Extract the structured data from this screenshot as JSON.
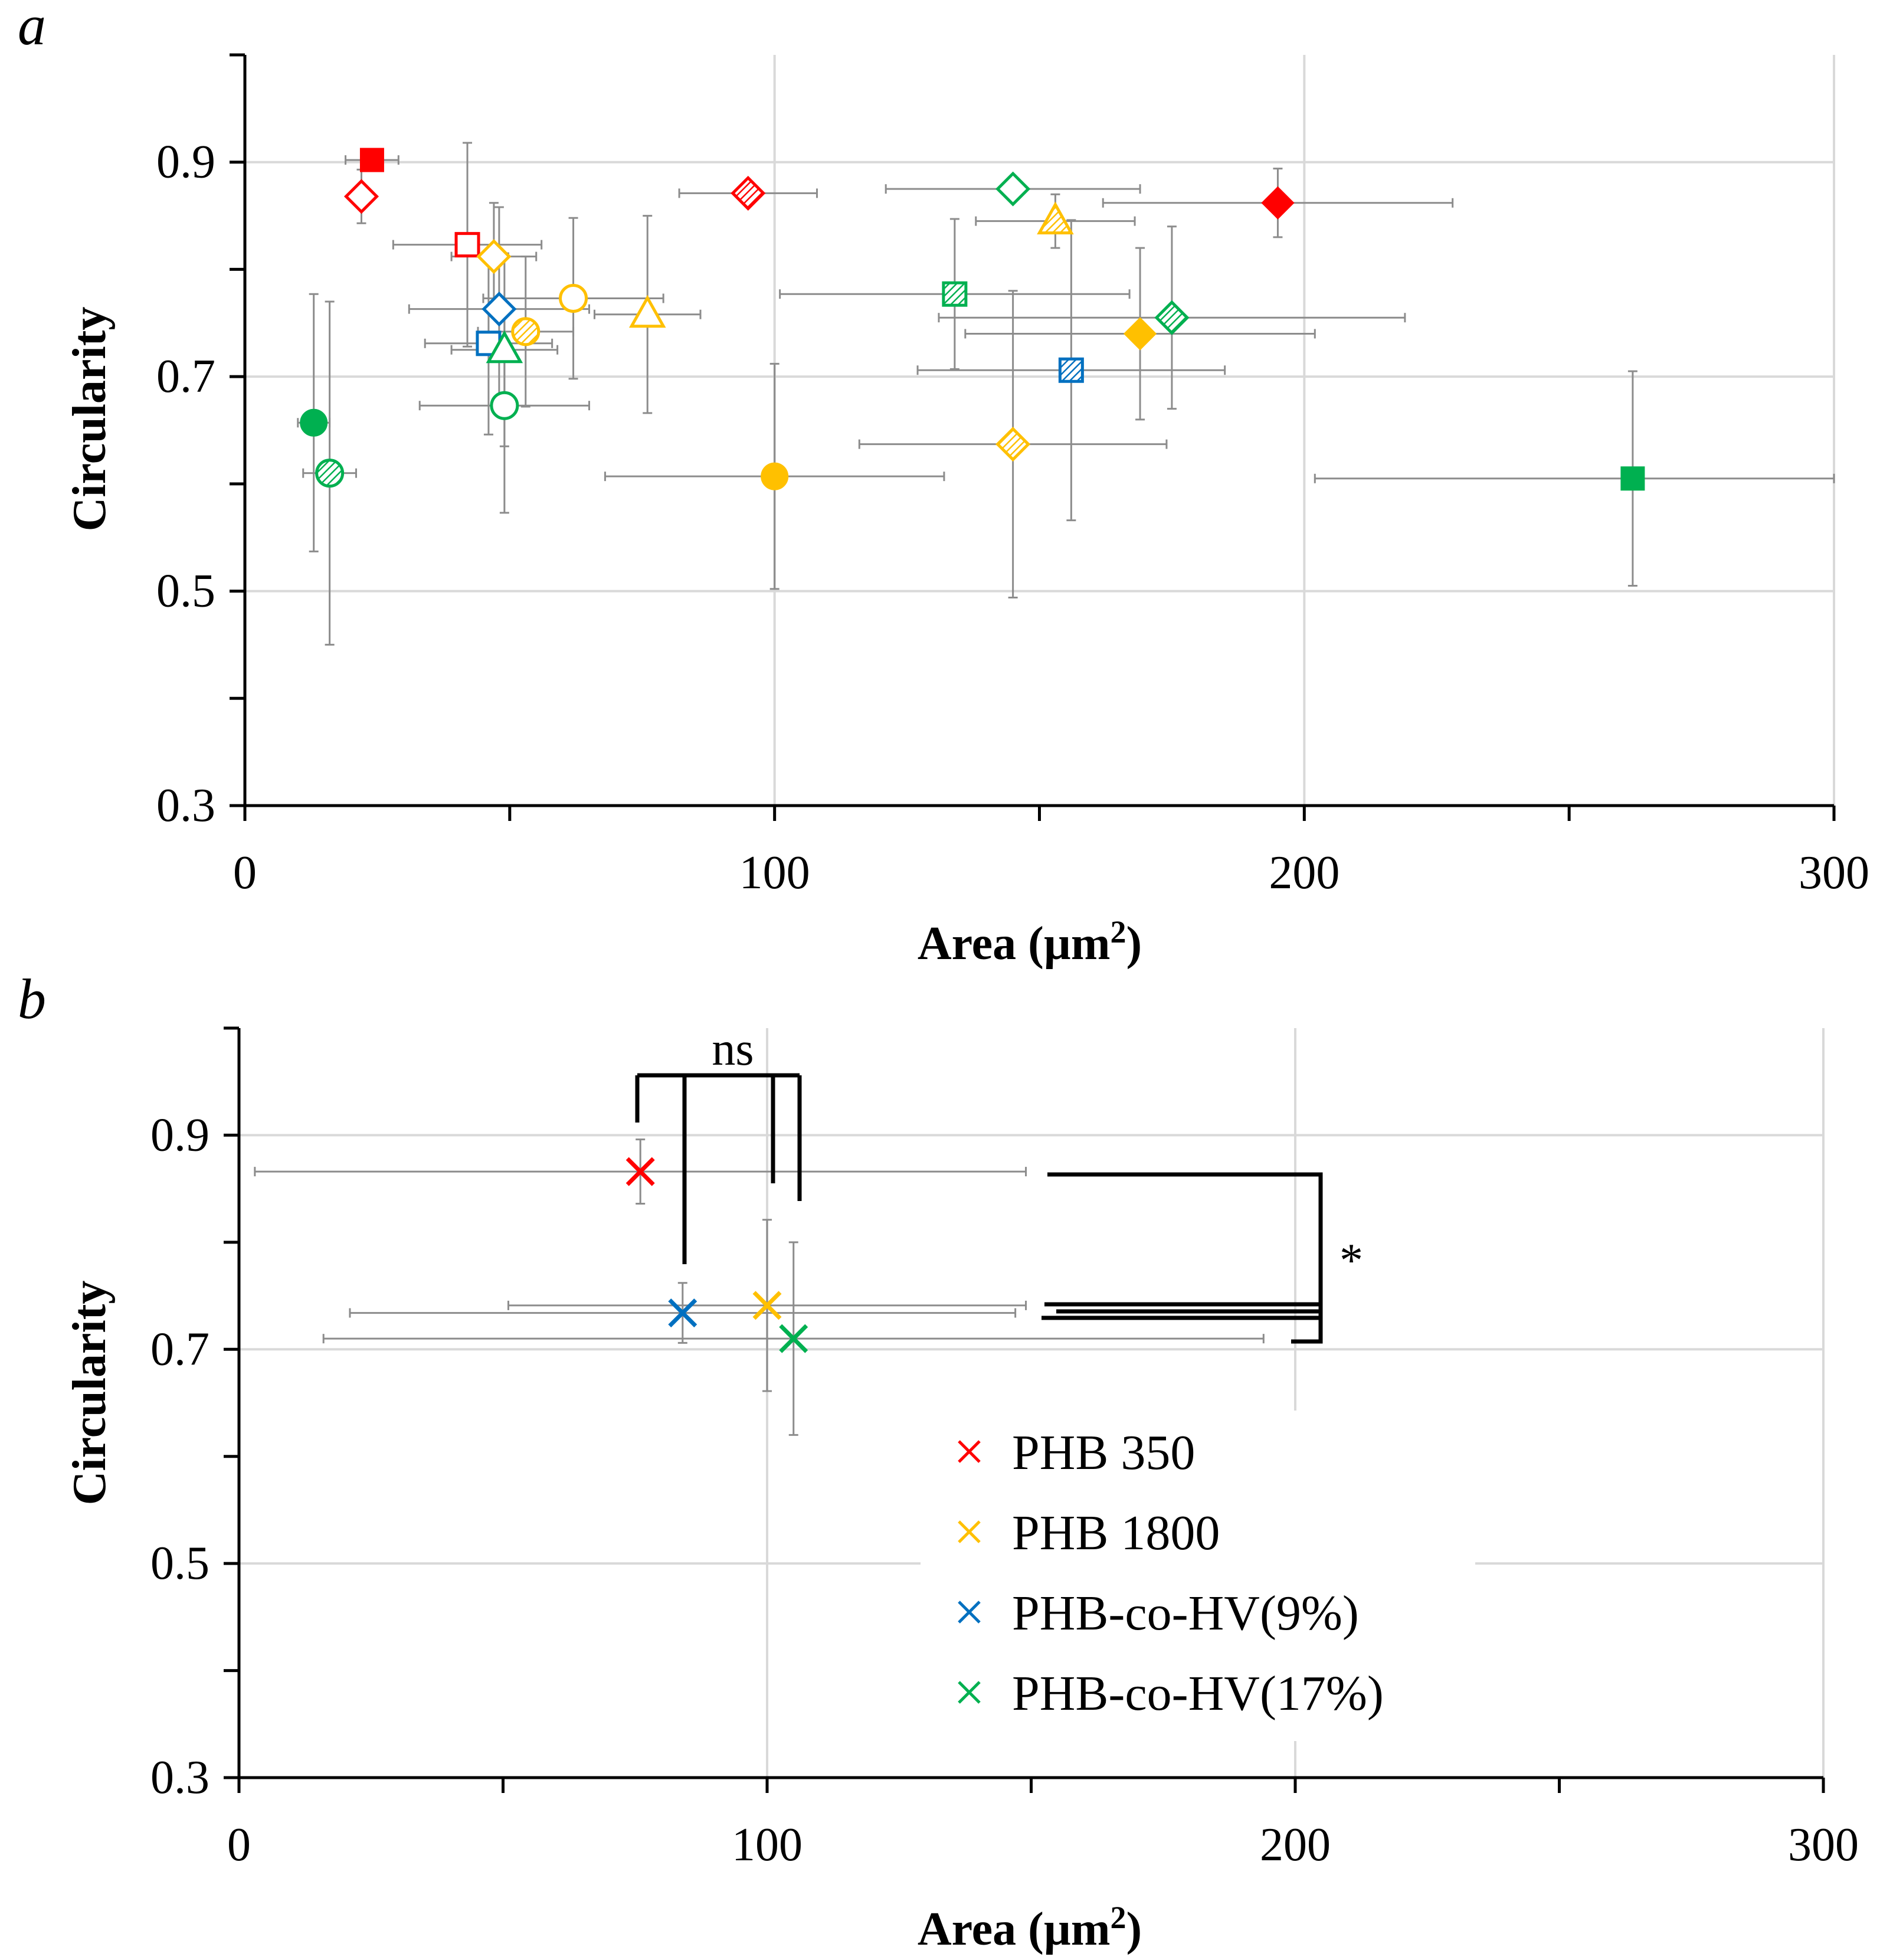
{
  "colors": {
    "red": "#ff0000",
    "yellow": "#ffc000",
    "blue": "#0070c0",
    "green": "#00b050",
    "grid": "#d9d9d9",
    "errorbar": "#8c8c8c",
    "axis": "#000000"
  },
  "chart_data": [
    {
      "panel_label": "a",
      "type": "scatter",
      "title": "",
      "xlabel_main": "Area (µm",
      "xlabel_sup": "2",
      "xlabel_close": ")",
      "ylabel": "Circularity",
      "xlim": [
        0,
        300
      ],
      "ylim": [
        0.3,
        1.0
      ],
      "x_ticks": [
        0,
        100,
        200,
        300
      ],
      "x_minor_ticks": [
        50,
        150,
        250
      ],
      "x_tick_labels": [
        "0",
        "100",
        "200",
        "300"
      ],
      "y_ticks": [
        0.3,
        0.5,
        0.7,
        0.9
      ],
      "y_minor_ticks": [
        0.4,
        0.6,
        0.8,
        1.0
      ],
      "y_tick_labels": [
        "0.3",
        "0.5",
        "0.7",
        "0.9"
      ],
      "grid": true,
      "points": [
        {
          "x": 24,
          "y": 0.902,
          "xerr": 5,
          "yerr": 0.004,
          "color": "red",
          "marker": "square",
          "fill": "solid"
        },
        {
          "x": 22,
          "y": 0.868,
          "xerr": 2,
          "yerr": 0.025,
          "color": "red",
          "marker": "diamond",
          "fill": "open"
        },
        {
          "x": 42,
          "y": 0.823,
          "xerr": 14,
          "yerr": 0.095,
          "color": "red",
          "marker": "square",
          "fill": "open"
        },
        {
          "x": 95,
          "y": 0.871,
          "xerr": 13,
          "yerr": 0.004,
          "color": "red",
          "marker": "diamond",
          "fill": "hatched"
        },
        {
          "x": 195,
          "y": 0.862,
          "xerr": 33,
          "yerr": 0.032,
          "color": "red",
          "marker": "diamond",
          "fill": "solid"
        },
        {
          "x": 47,
          "y": 0.812,
          "xerr": 8,
          "yerr": 0.05,
          "color": "yellow",
          "marker": "diamond",
          "fill": "open"
        },
        {
          "x": 62,
          "y": 0.773,
          "xerr": 17,
          "yerr": 0.075,
          "color": "yellow",
          "marker": "circle",
          "fill": "open"
        },
        {
          "x": 76,
          "y": 0.758,
          "xerr": 10,
          "yerr": 0.092,
          "color": "yellow",
          "marker": "triangle",
          "fill": "open"
        },
        {
          "x": 53,
          "y": 0.742,
          "xerr": 9,
          "yerr": 0.07,
          "color": "yellow",
          "marker": "circle",
          "fill": "hatched"
        },
        {
          "x": 100,
          "y": 0.607,
          "xerr": 32,
          "yerr": 0.105,
          "color": "yellow",
          "marker": "circle",
          "fill": "solid"
        },
        {
          "x": 145,
          "y": 0.637,
          "xerr": 29,
          "yerr": 0.143,
          "color": "yellow",
          "marker": "diamond",
          "fill": "hatched"
        },
        {
          "x": 153,
          "y": 0.845,
          "xerr": 15,
          "yerr": 0.025,
          "color": "yellow",
          "marker": "triangle",
          "fill": "hatched"
        },
        {
          "x": 169,
          "y": 0.74,
          "xerr": 33,
          "yerr": 0.08,
          "color": "yellow",
          "marker": "diamond",
          "fill": "solid"
        },
        {
          "x": 48,
          "y": 0.763,
          "xerr": 17,
          "yerr": 0.095,
          "color": "blue",
          "marker": "diamond",
          "fill": "open"
        },
        {
          "x": 46,
          "y": 0.731,
          "xerr": 12,
          "yerr": 0.085,
          "color": "blue",
          "marker": "square",
          "fill": "open"
        },
        {
          "x": 156,
          "y": 0.706,
          "xerr": 29,
          "yerr": 0.14,
          "color": "blue",
          "marker": "square",
          "fill": "hatched"
        },
        {
          "x": 49,
          "y": 0.725,
          "xerr": 10,
          "yerr": 0.09,
          "color": "green",
          "marker": "triangle",
          "fill": "open"
        },
        {
          "x": 49,
          "y": 0.673,
          "xerr": 16,
          "yerr": 0.1,
          "color": "green",
          "marker": "circle",
          "fill": "open"
        },
        {
          "x": 13,
          "y": 0.657,
          "xerr": 3,
          "yerr": 0.12,
          "color": "green",
          "marker": "circle",
          "fill": "solid"
        },
        {
          "x": 16,
          "y": 0.61,
          "xerr": 5,
          "yerr": 0.16,
          "color": "green",
          "marker": "circle",
          "fill": "hatched"
        },
        {
          "x": 145,
          "y": 0.875,
          "xerr": 24,
          "yerr": 0.004,
          "color": "green",
          "marker": "diamond",
          "fill": "open"
        },
        {
          "x": 134,
          "y": 0.777,
          "xerr": 33,
          "yerr": 0.07,
          "color": "green",
          "marker": "square",
          "fill": "hatched"
        },
        {
          "x": 175,
          "y": 0.755,
          "xerr": 44,
          "yerr": 0.085,
          "color": "green",
          "marker": "diamond",
          "fill": "hatched"
        },
        {
          "x": 262,
          "y": 0.605,
          "xerr": 60,
          "yerr": 0.1,
          "color": "green",
          "marker": "square",
          "fill": "solid"
        }
      ]
    },
    {
      "panel_label": "b",
      "type": "scatter",
      "title": "",
      "xlabel_main": "Area (µm",
      "xlabel_sup": "2",
      "xlabel_close": ")",
      "ylabel": "Circularity",
      "xlim": [
        0,
        300
      ],
      "ylim": [
        0.3,
        1.0
      ],
      "x_ticks": [
        0,
        100,
        200,
        300
      ],
      "x_minor_ticks": [
        50,
        150,
        250
      ],
      "x_tick_labels": [
        "0",
        "100",
        "200",
        "300"
      ],
      "y_ticks": [
        0.3,
        0.5,
        0.7,
        0.9
      ],
      "y_minor_ticks": [
        0.4,
        0.6,
        0.8,
        1.0
      ],
      "y_tick_labels": [
        "0.3",
        "0.5",
        "0.7",
        "0.9"
      ],
      "grid": true,
      "legend_position": "lower-right",
      "series": [
        {
          "name": "PHB 350",
          "color": "red",
          "x": 76,
          "y": 0.866,
          "xerr": 73,
          "yerr": 0.03
        },
        {
          "name": "PHB 1800",
          "color": "yellow",
          "x": 100,
          "y": 0.741,
          "xerr": 49,
          "yerr": 0.08
        },
        {
          "name": "PHB-co-HV(9%)",
          "color": "blue",
          "x": 84,
          "y": 0.734,
          "xerr": 63,
          "yerr": 0.028
        },
        {
          "name": "PHB-co-HV(17%)",
          "color": "green",
          "x": 105,
          "y": 0.71,
          "xerr": 89,
          "yerr": 0.09
        }
      ],
      "annotations": {
        "ns_label": "ns",
        "star_label": "*"
      }
    }
  ]
}
